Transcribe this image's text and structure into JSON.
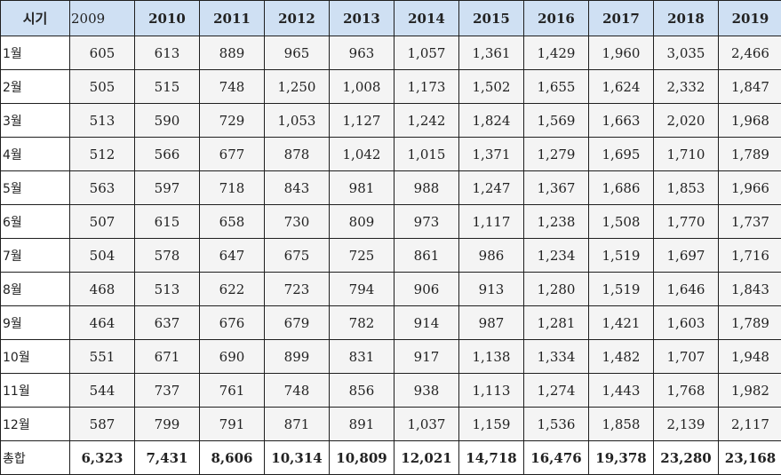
{
  "table": {
    "corner_label": "시기",
    "years": [
      "2009",
      "2010",
      "2011",
      "2012",
      "2013",
      "2014",
      "2015",
      "2016",
      "2017",
      "2018",
      "2019"
    ],
    "rows": [
      {
        "label": "1월",
        "values": [
          "605",
          "613",
          "889",
          "965",
          "963",
          "1,057",
          "1,361",
          "1,429",
          "1,960",
          "3,035",
          "2,466"
        ]
      },
      {
        "label": "2월",
        "values": [
          "505",
          "515",
          "748",
          "1,250",
          "1,008",
          "1,173",
          "1,502",
          "1,655",
          "1,624",
          "2,332",
          "1,847"
        ]
      },
      {
        "label": "3월",
        "values": [
          "513",
          "590",
          "729",
          "1,053",
          "1,127",
          "1,242",
          "1,824",
          "1,569",
          "1,663",
          "2,020",
          "1,968"
        ]
      },
      {
        "label": "4월",
        "values": [
          "512",
          "566",
          "677",
          "878",
          "1,042",
          "1,015",
          "1,371",
          "1,279",
          "1,695",
          "1,710",
          "1,789"
        ]
      },
      {
        "label": "5월",
        "values": [
          "563",
          "597",
          "718",
          "843",
          "981",
          "988",
          "1,247",
          "1,367",
          "1,686",
          "1,853",
          "1,966"
        ]
      },
      {
        "label": "6월",
        "values": [
          "507",
          "615",
          "658",
          "730",
          "809",
          "973",
          "1,117",
          "1,238",
          "1,508",
          "1,770",
          "1,737"
        ]
      },
      {
        "label": "7월",
        "values": [
          "504",
          "578",
          "647",
          "675",
          "725",
          "861",
          "986",
          "1,234",
          "1,519",
          "1,697",
          "1,716"
        ]
      },
      {
        "label": "8월",
        "values": [
          "468",
          "513",
          "622",
          "723",
          "794",
          "906",
          "913",
          "1,280",
          "1,519",
          "1,646",
          "1,843"
        ]
      },
      {
        "label": "9월",
        "values": [
          "464",
          "637",
          "676",
          "679",
          "782",
          "914",
          "987",
          "1,281",
          "1,421",
          "1,603",
          "1,789"
        ]
      },
      {
        "label": "10월",
        "values": [
          "551",
          "671",
          "690",
          "899",
          "831",
          "917",
          "1,138",
          "1,334",
          "1,482",
          "1,707",
          "1,948"
        ]
      },
      {
        "label": "11월",
        "values": [
          "544",
          "737",
          "761",
          "748",
          "856",
          "938",
          "1,113",
          "1,274",
          "1,443",
          "1,768",
          "1,982"
        ]
      },
      {
        "label": "12월",
        "values": [
          "587",
          "799",
          "791",
          "871",
          "891",
          "1,037",
          "1,159",
          "1,536",
          "1,858",
          "2,139",
          "2,117"
        ]
      }
    ],
    "total_row": {
      "label": "총합",
      "values": [
        "6,323",
        "7,431",
        "8,606",
        "10,314",
        "10,809",
        "12,021",
        "14,718",
        "16,476",
        "19,378",
        "23,280",
        "23,168"
      ]
    }
  }
}
